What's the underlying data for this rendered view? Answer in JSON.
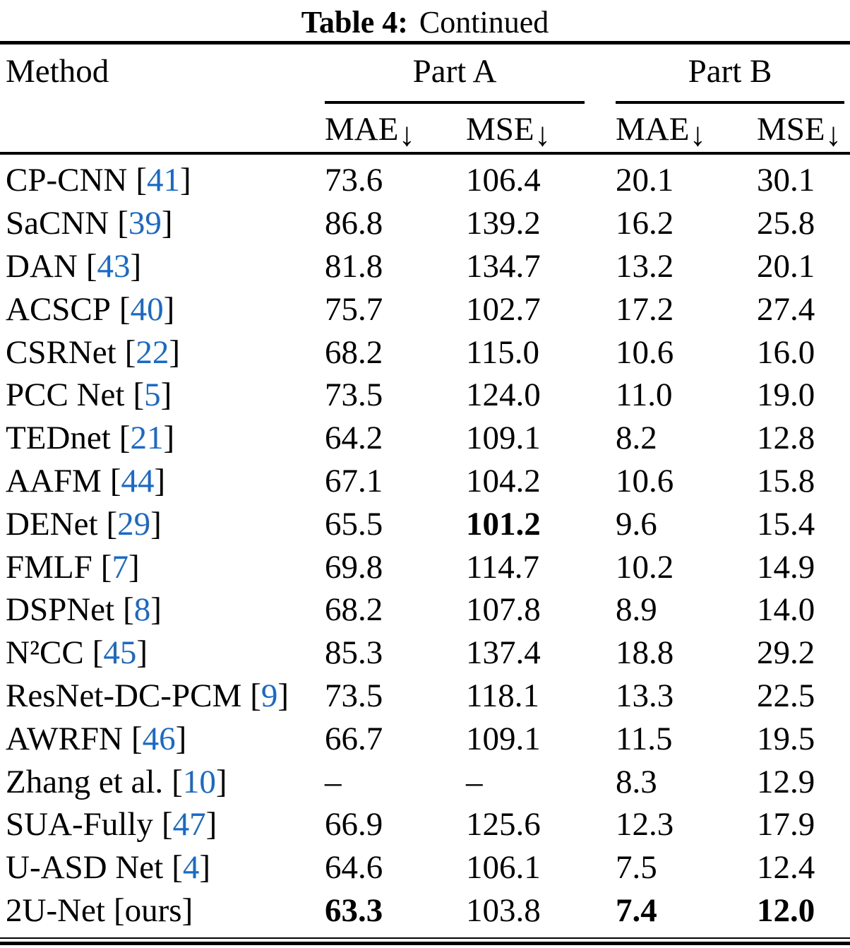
{
  "caption": {
    "label": "Table 4:",
    "text": "Continued"
  },
  "header": {
    "method": "Method",
    "groups": [
      {
        "label": "Part A"
      },
      {
        "label": "Part B"
      }
    ],
    "subheaders": [
      {
        "label": "MAE",
        "arrow": "↓"
      },
      {
        "label": "MSE",
        "arrow": "↓"
      },
      {
        "label": "MAE",
        "arrow": "↓"
      },
      {
        "label": "MSE",
        "arrow": "↓"
      }
    ]
  },
  "punctuation": {
    "bracket_open": "[",
    "bracket_close": "]"
  },
  "chart_data": {
    "type": "table",
    "title": "Table 4: Continued",
    "columns": [
      "Method",
      "Part A MAE",
      "Part A MSE",
      "Part B MAE",
      "Part B MSE"
    ],
    "rows": [
      {
        "method": "CP-CNN",
        "cite": "41",
        "cite_is_link": true,
        "values": [
          "73.6",
          "106.4",
          "20.1",
          "30.1"
        ],
        "bold": [
          false,
          false,
          false,
          false
        ]
      },
      {
        "method": "SaCNN",
        "cite": "39",
        "cite_is_link": true,
        "values": [
          "86.8",
          "139.2",
          "16.2",
          "25.8"
        ],
        "bold": [
          false,
          false,
          false,
          false
        ]
      },
      {
        "method": "DAN",
        "cite": "43",
        "cite_is_link": true,
        "values": [
          "81.8",
          "134.7",
          "13.2",
          "20.1"
        ],
        "bold": [
          false,
          false,
          false,
          false
        ]
      },
      {
        "method": "ACSCP",
        "cite": "40",
        "cite_is_link": true,
        "values": [
          "75.7",
          "102.7",
          "17.2",
          "27.4"
        ],
        "bold": [
          false,
          false,
          false,
          false
        ]
      },
      {
        "method": "CSRNet",
        "cite": "22",
        "cite_is_link": true,
        "values": [
          "68.2",
          "115.0",
          "10.6",
          "16.0"
        ],
        "bold": [
          false,
          false,
          false,
          false
        ]
      },
      {
        "method": "PCC Net",
        "cite": "5",
        "cite_is_link": true,
        "values": [
          "73.5",
          "124.0",
          "11.0",
          "19.0"
        ],
        "bold": [
          false,
          false,
          false,
          false
        ]
      },
      {
        "method": "TEDnet",
        "cite": "21",
        "cite_is_link": true,
        "values": [
          "64.2",
          "109.1",
          "8.2",
          "12.8"
        ],
        "bold": [
          false,
          false,
          false,
          false
        ]
      },
      {
        "method": "AAFM",
        "cite": "44",
        "cite_is_link": true,
        "values": [
          "67.1",
          "104.2",
          "10.6",
          "15.8"
        ],
        "bold": [
          false,
          false,
          false,
          false
        ]
      },
      {
        "method": "DENet",
        "cite": "29",
        "cite_is_link": true,
        "values": [
          "65.5",
          "101.2",
          "9.6",
          "15.4"
        ],
        "bold": [
          false,
          true,
          false,
          false
        ]
      },
      {
        "method": "FMLF",
        "cite": "7",
        "cite_is_link": true,
        "values": [
          "69.8",
          "114.7",
          "10.2",
          "14.9"
        ],
        "bold": [
          false,
          false,
          false,
          false
        ]
      },
      {
        "method": "DSPNet",
        "cite": "8",
        "cite_is_link": true,
        "values": [
          "68.2",
          "107.8",
          "8.9",
          "14.0"
        ],
        "bold": [
          false,
          false,
          false,
          false
        ]
      },
      {
        "method": "N²CC",
        "cite": "45",
        "cite_is_link": true,
        "values": [
          "85.3",
          "137.4",
          "18.8",
          "29.2"
        ],
        "bold": [
          false,
          false,
          false,
          false
        ]
      },
      {
        "method": "ResNet-DC-PCM",
        "cite": "9",
        "cite_is_link": true,
        "values": [
          "73.5",
          "118.1",
          "13.3",
          "22.5"
        ],
        "bold": [
          false,
          false,
          false,
          false
        ]
      },
      {
        "method": "AWRFN",
        "cite": "46",
        "cite_is_link": true,
        "values": [
          "66.7",
          "109.1",
          "11.5",
          "19.5"
        ],
        "bold": [
          false,
          false,
          false,
          false
        ]
      },
      {
        "method": "Zhang et al.",
        "cite": "10",
        "cite_is_link": true,
        "values": [
          "–",
          "–",
          "8.3",
          "12.9"
        ],
        "bold": [
          false,
          false,
          false,
          false
        ]
      },
      {
        "method": "SUA-Fully",
        "cite": "47",
        "cite_is_link": true,
        "values": [
          "66.9",
          "125.6",
          "12.3",
          "17.9"
        ],
        "bold": [
          false,
          false,
          false,
          false
        ]
      },
      {
        "method": "U-ASD Net",
        "cite": "4",
        "cite_is_link": true,
        "values": [
          "64.6",
          "106.1",
          "7.5",
          "12.4"
        ],
        "bold": [
          false,
          false,
          false,
          false
        ]
      },
      {
        "method": "2U-Net",
        "cite": "ours",
        "cite_is_link": false,
        "values": [
          "63.3",
          "103.8",
          "7.4",
          "12.0"
        ],
        "bold": [
          true,
          false,
          true,
          true
        ]
      }
    ]
  },
  "colors": {
    "citation_blue": "#1969c8",
    "text": "#000000",
    "background": "#ffffff"
  }
}
